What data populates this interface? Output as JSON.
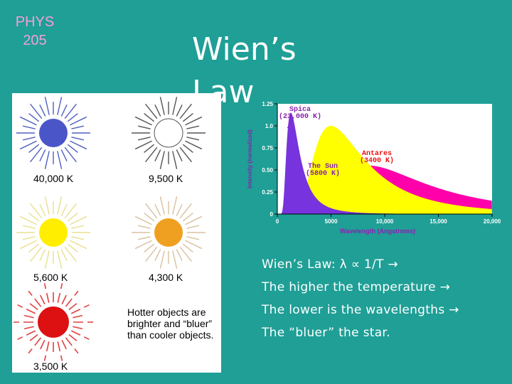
{
  "course": {
    "line1": "PHYS",
    "line2": "205"
  },
  "title": "Wien’s Law",
  "stars_figure": {
    "stars": [
      {
        "label": "40,000 K",
        "color": "#4a56c8"
      },
      {
        "label": "9,500 K",
        "color": "#ffffff"
      },
      {
        "label": "5,600 K",
        "color": "#ffee00"
      },
      {
        "label": "4,300 K",
        "color": "#f0a020"
      },
      {
        "label": "3,500 K",
        "color": "#dd1111"
      }
    ],
    "caption": [
      "Hotter objects are",
      "brighter and “bluer”",
      "than cooler objects."
    ]
  },
  "chart_data": {
    "type": "area",
    "xlabel": "Wavelength (Angstroms)",
    "ylabel": "Intensity (normalized)",
    "xlim": [
      0,
      20000
    ],
    "ylim": [
      0,
      1.25
    ],
    "x_ticks": [
      "0",
      "5000",
      "10,000",
      "15,000",
      "20,000"
    ],
    "y_ticks": [
      "0",
      "0.25",
      "0.50",
      "0.75",
      "1.0",
      "1.25"
    ],
    "series": [
      {
        "name": "Spica",
        "temp_label": "(23,000 K)",
        "temperature_K": 23000,
        "color": "#7733dd",
        "label_color": "#8a22b0"
      },
      {
        "name": "The Sun",
        "temp_label": "(5800 K)",
        "temperature_K": 5800,
        "color": "#ffff00",
        "label_color": "#8a22b0"
      },
      {
        "name": "Antares",
        "temp_label": "(3400 K)",
        "temperature_K": 3400,
        "color": "#ff00aa",
        "label_color": "#ee1111"
      }
    ]
  },
  "bullets": [
    {
      "text": "Wien’s Law: λ ∝ 1/T →"
    },
    {
      "text": "The higher the temperature →"
    },
    {
      "text": "The lower is the wavelengths →"
    },
    {
      "text": "The “bluer” the star."
    }
  ]
}
